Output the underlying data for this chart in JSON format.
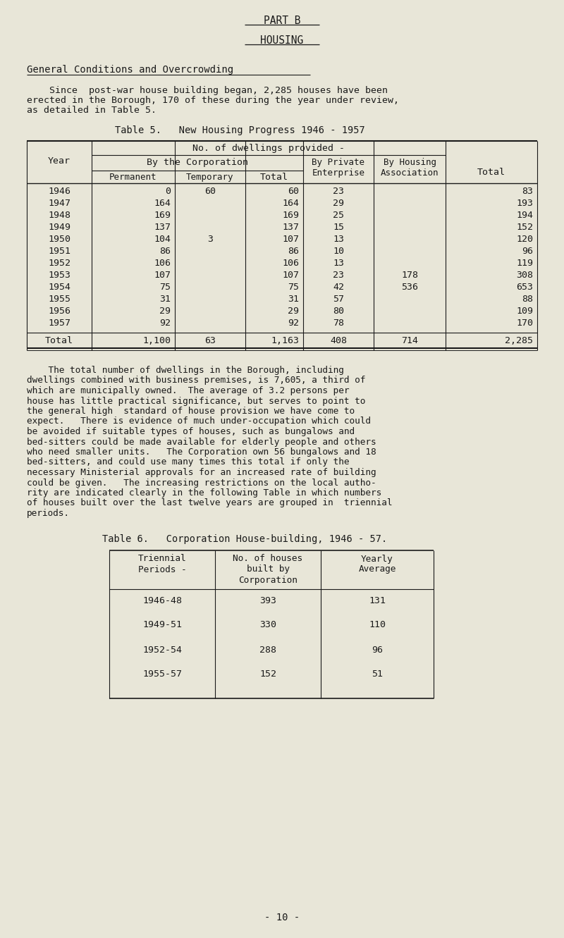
{
  "bg_color": "#e8e6d8",
  "text_color": "#1a1a1a",
  "part_b_title": "PART B",
  "housing_title": "HOUSING",
  "section_title": "General Conditions and Overcrowding",
  "intro_line1": "    Since  post-war house building began, 2,285 houses have been",
  "intro_line2": "erected in the Borough, 170 of these during the year under review,",
  "intro_line3": "as detailed in Table 5.",
  "table5_title": "Table 5.   New Housing Progress 1946 - 1957",
  "table5_years": [
    "1946",
    "1947",
    "1948",
    "1949",
    "1950",
    "1951",
    "1952",
    "1953",
    "1954",
    "1955",
    "1956",
    "1957"
  ],
  "table5_permanent": [
    "0",
    "164",
    "169",
    "137",
    "104",
    "86",
    "106",
    "107",
    "75",
    "31",
    "29",
    "92"
  ],
  "table5_temporary": [
    "60",
    "",
    "",
    "",
    "3",
    "",
    "",
    "",
    "",
    "",
    "",
    ""
  ],
  "table5_total_corp": [
    "60",
    "164",
    "169",
    "137",
    "107",
    "86",
    "106",
    "107",
    "75",
    "31",
    "29",
    "92"
  ],
  "table5_private": [
    "23",
    "29",
    "25",
    "15",
    "13",
    "10",
    "13",
    "23",
    "42",
    "57",
    "80",
    "78"
  ],
  "table5_housing": [
    "",
    "",
    "",
    "",
    "",
    "",
    "",
    "178",
    "536",
    "",
    "",
    ""
  ],
  "table5_total": [
    "83",
    "193",
    "194",
    "152",
    "120",
    "96",
    "119",
    "308",
    "653",
    "88",
    "109",
    "170"
  ],
  "table5_footer_perm": "1,100",
  "table5_footer_temp": "63",
  "table5_footer_total_corp": "1,163",
  "table5_footer_private": "408",
  "table5_footer_housing": "714",
  "table5_footer_total": "2,285",
  "body_lines": [
    "    The total number of dwellings in the Borough, including",
    "dwellings combined with business premises, is 7,605, a third of",
    "which are municipally owned.  The average of 3.2 persons per",
    "house has little practical significance, but serves to point to",
    "the general high  standard of house provision we have come to",
    "expect.   There is evidence of much under-occupation which could",
    "be avoided if suitable types of houses, such as bungalows and",
    "bed-sitters could be made available for elderly people and others",
    "who need smaller units.   The Corporation own 56 bungalows and 18",
    "bed-sitters, and could use many times this total if only the",
    "necessary Ministerial approvals for an increased rate of building",
    "could be given.   The increasing restrictions on the local autho-",
    "rity are indicated clearly in the following Table in which numbers",
    "of houses built over the last twelve years are grouped in  triennial",
    "periods."
  ],
  "table6_title": "Table 6.   Corporation House-building, 1946 - 57.",
  "table6_periods": [
    "1946-48",
    "1949-51",
    "1952-54",
    "1955-57"
  ],
  "table6_houses": [
    "393",
    "330",
    "288",
    "152"
  ],
  "table6_avg": [
    "131",
    "110",
    "96",
    "51"
  ],
  "page_number": "- 10 -"
}
